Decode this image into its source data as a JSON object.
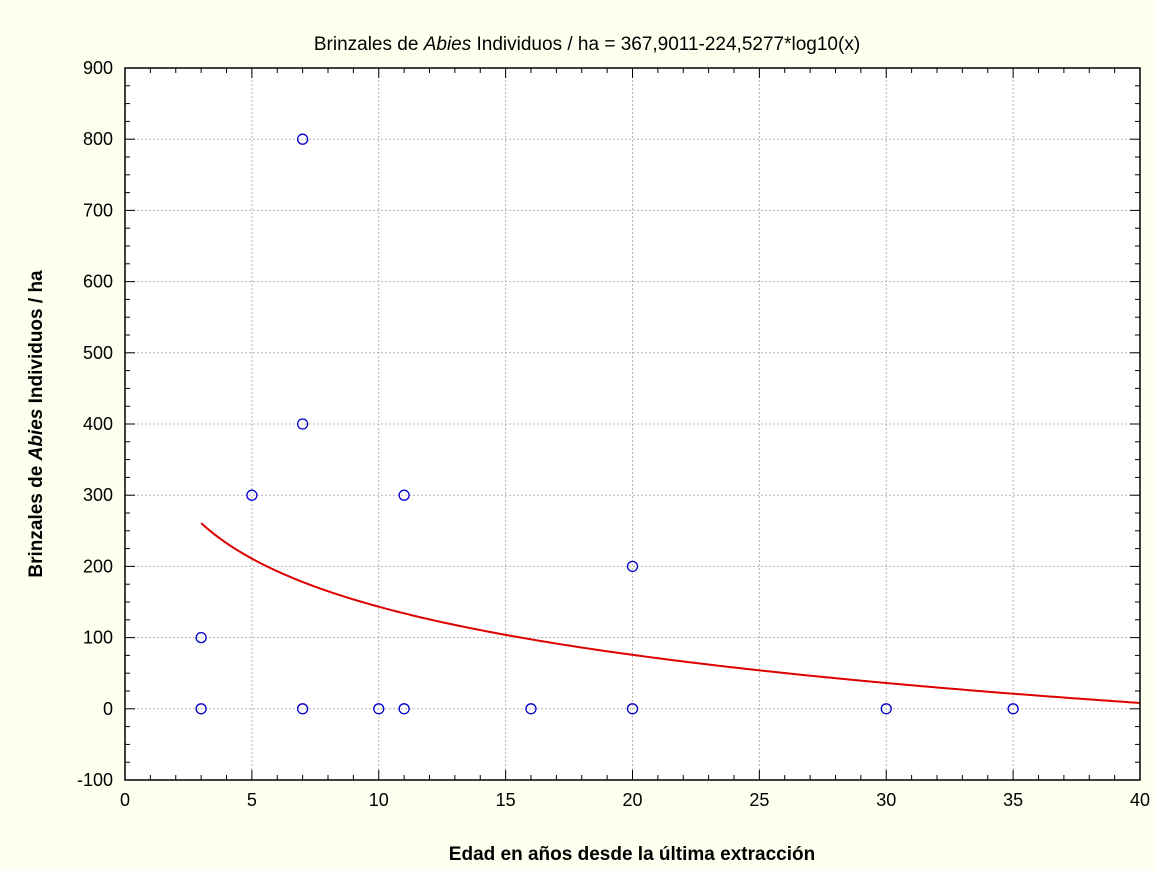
{
  "chart_data": {
    "type": "scatter",
    "title_pre": "Brinzales de ",
    "title_italic": "Abies",
    "title_post": " Individuos / ha = 367,9011-224,5277*log10(x)",
    "xlabel": "Edad en años desde la última extracción",
    "ylabel_pre": "Brinzales de ",
    "ylabel_italic": "Abies",
    "ylabel_post": " Individuos / ha",
    "xlim": [
      0,
      40
    ],
    "ylim": [
      -100,
      900
    ],
    "xticks": [
      0,
      5,
      10,
      15,
      20,
      25,
      30,
      35,
      40
    ],
    "yticks": [
      -100,
      0,
      100,
      200,
      300,
      400,
      500,
      600,
      700,
      800,
      900
    ],
    "grid": true,
    "series": [
      {
        "kind": "points",
        "color": "#0000cc",
        "points": [
          {
            "x": 3,
            "y": 100
          },
          {
            "x": 3,
            "y": 0
          },
          {
            "x": 5,
            "y": 300
          },
          {
            "x": 7,
            "y": 800
          },
          {
            "x": 7,
            "y": 400
          },
          {
            "x": 7,
            "y": 0
          },
          {
            "x": 10,
            "y": 0
          },
          {
            "x": 11,
            "y": 300
          },
          {
            "x": 11,
            "y": 0
          },
          {
            "x": 16,
            "y": 0
          },
          {
            "x": 20,
            "y": 200
          },
          {
            "x": 20,
            "y": 0
          },
          {
            "x": 30,
            "y": 0
          },
          {
            "x": 35,
            "y": 0
          }
        ]
      },
      {
        "kind": "fit",
        "color": "#dd0000",
        "intercept": 367.9011,
        "slope": -224.5277,
        "xrange": [
          3,
          40
        ]
      }
    ]
  }
}
